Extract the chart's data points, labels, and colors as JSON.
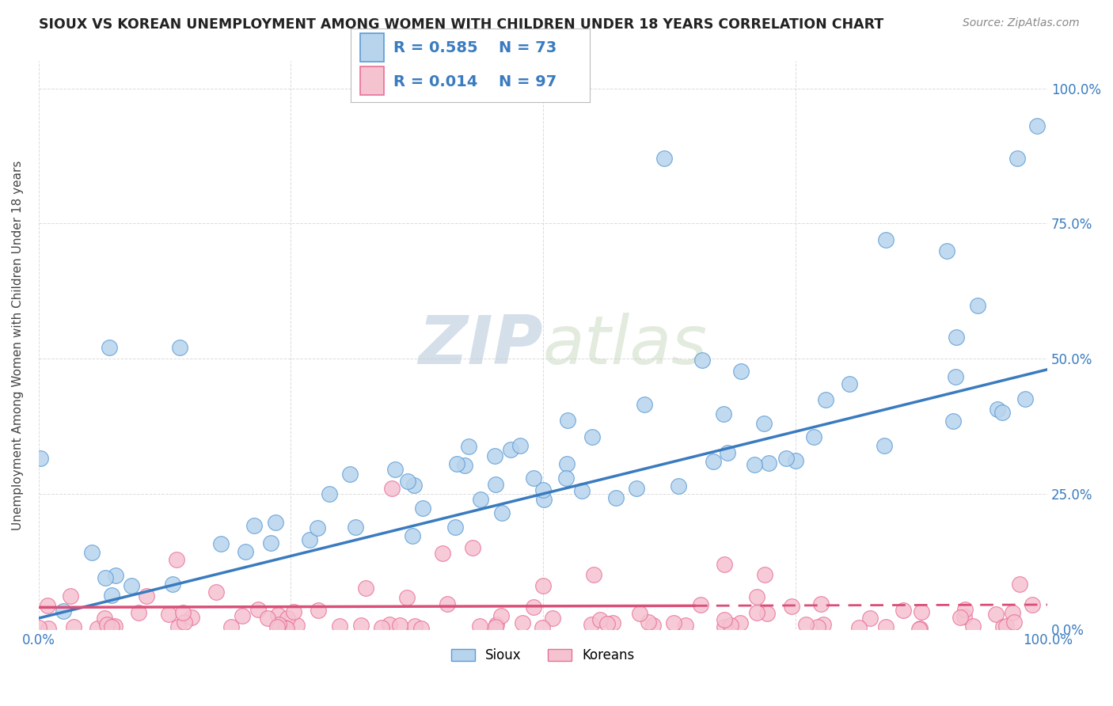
{
  "title": "SIOUX VS KOREAN UNEMPLOYMENT AMONG WOMEN WITH CHILDREN UNDER 18 YEARS CORRELATION CHART",
  "source": "Source: ZipAtlas.com",
  "ylabel": "Unemployment Among Women with Children Under 18 years",
  "sioux_R": "0.585",
  "sioux_N": "73",
  "korean_R": "0.014",
  "korean_N": "97",
  "sioux_color": "#b8d4ed",
  "korean_color": "#f5c2d0",
  "sioux_edge_color": "#5b9bd5",
  "korean_edge_color": "#e87099",
  "sioux_line_color": "#3a7bbf",
  "korean_line_color": "#d94f78",
  "watermark_color": "#d8e8f5",
  "background_color": "#ffffff",
  "grid_color": "#cccccc",
  "title_color": "#222222",
  "source_color": "#888888",
  "tick_color": "#3a7bbf",
  "axis_label_color": "#444444",
  "legend_text_color": "#3a7bbf"
}
